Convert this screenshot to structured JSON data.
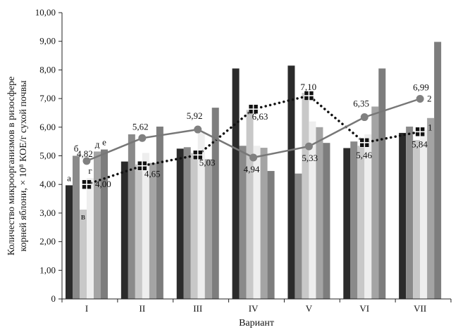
{
  "chart_data": {
    "type": "bar",
    "title": "",
    "xlabel": "Вариант",
    "ylabel_line1": "Количество микроорганизмов в ризосфере",
    "ylabel_line2": "корней яблони, × 10⁸ КОЕ/г сухой почвы",
    "ylim": [
      0,
      10
    ],
    "yticks": [
      0,
      1,
      2,
      3,
      4,
      5,
      6,
      7,
      8,
      9,
      10
    ],
    "ytick_labels": [
      "0",
      "1,00",
      "2,00",
      "3,00",
      "4,00",
      "5,00",
      "6,00",
      "7,00",
      "8,00",
      "9,00",
      "10,00"
    ],
    "categories": [
      "I",
      "II",
      "III",
      "IV",
      "V",
      "VI",
      "VII"
    ],
    "bar_series": [
      {
        "name": "а",
        "color": "#2b2b2b",
        "values": [
          3.97,
          4.8,
          5.25,
          8.05,
          8.15,
          5.27,
          5.8
        ]
      },
      {
        "name": "б",
        "color": "#8a8a8a",
        "values": [
          5.0,
          5.75,
          5.3,
          5.35,
          4.38,
          5.5,
          6.02
        ]
      },
      {
        "name": "в",
        "color": "#c8c8c8",
        "values": [
          3.12,
          4.7,
          5.1,
          6.6,
          7.2,
          5.35,
          5.55
        ]
      },
      {
        "name": "г",
        "color": "#eeeeee",
        "values": [
          4.22,
          5.1,
          5.8,
          5.35,
          6.2,
          5.75,
          5.9
        ]
      },
      {
        "name": "д",
        "color": "#a4a4a4",
        "values": [
          5.15,
          4.75,
          4.88,
          5.28,
          6.0,
          6.72,
          6.32
        ]
      },
      {
        "name": "е",
        "color": "#7d7d7d",
        "values": [
          5.22,
          6.02,
          6.68,
          4.47,
          5.45,
          8.05,
          8.98
        ]
      }
    ],
    "line_series": [
      {
        "name": "1",
        "style": "dotted",
        "marker": "square",
        "values": [
          4.0,
          4.65,
          5.03,
          6.63,
          7.1,
          5.46,
          5.84
        ],
        "labels": [
          "4,00",
          "4,65",
          "5,03",
          "6,63",
          "7,10",
          "5,46",
          "5,84"
        ]
      },
      {
        "name": "2",
        "style": "solid",
        "marker": "circle",
        "values": [
          4.82,
          5.62,
          5.92,
          4.94,
          5.33,
          6.35,
          6.99
        ],
        "labels": [
          "4,82",
          "5,62",
          "5,92",
          "4,94",
          "5,33",
          "6,35",
          "6,99"
        ]
      }
    ],
    "grid": false,
    "colors": {
      "line": "#777777",
      "marker_square": "#111111",
      "marker_circle": "#808080"
    }
  }
}
